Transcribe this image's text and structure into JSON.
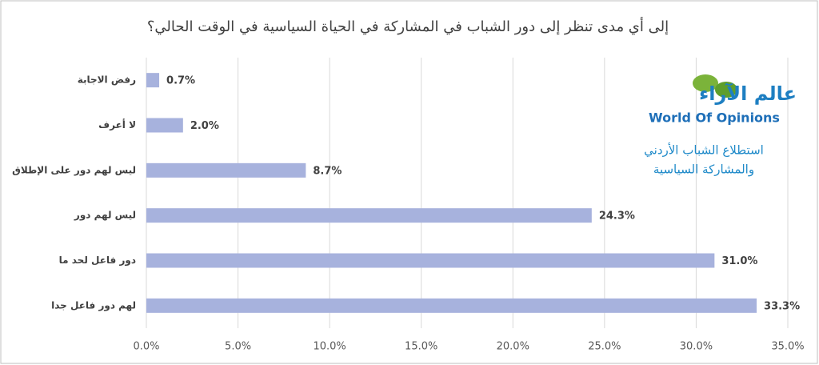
{
  "chart_data": {
    "type": "barh",
    "title": "إلى أي مدى تنظر إلى دور الشباب في المشاركة في الحياة السياسية في الوقت الحالي؟",
    "categories": [
      "رفض الاجابة",
      "لا أعرف",
      "ليس لهم دور على الإطلاق",
      "ليس لهم دور",
      "دور فاعل لحد ما",
      "لهم دور فاعل جدا"
    ],
    "values": [
      0.7,
      2.0,
      8.7,
      24.3,
      31.0,
      33.3
    ],
    "value_labels": [
      "0.7%",
      "2.0%",
      "8.7%",
      "24.3%",
      "31.0%",
      "33.3%"
    ],
    "color": "#a7b2dd",
    "xlim": [
      0,
      35
    ],
    "xticks": [
      {
        "value": 0,
        "label": "0.0%"
      },
      {
        "value": 5,
        "label": "5.0%"
      },
      {
        "value": 10,
        "label": "10.0%"
      },
      {
        "value": 15,
        "label": "15.0%"
      },
      {
        "value": 20,
        "label": "20.0%"
      },
      {
        "value": 25,
        "label": "25.0%"
      },
      {
        "value": 30,
        "label": "30.0%"
      },
      {
        "value": 35,
        "label": "35.0%"
      }
    ],
    "grid": true,
    "annotations": [
      "عالم الآراء",
      "World Of Opinions",
      "استطلاع الشباب الأردني",
      "والمشاركة السياسية"
    ]
  }
}
